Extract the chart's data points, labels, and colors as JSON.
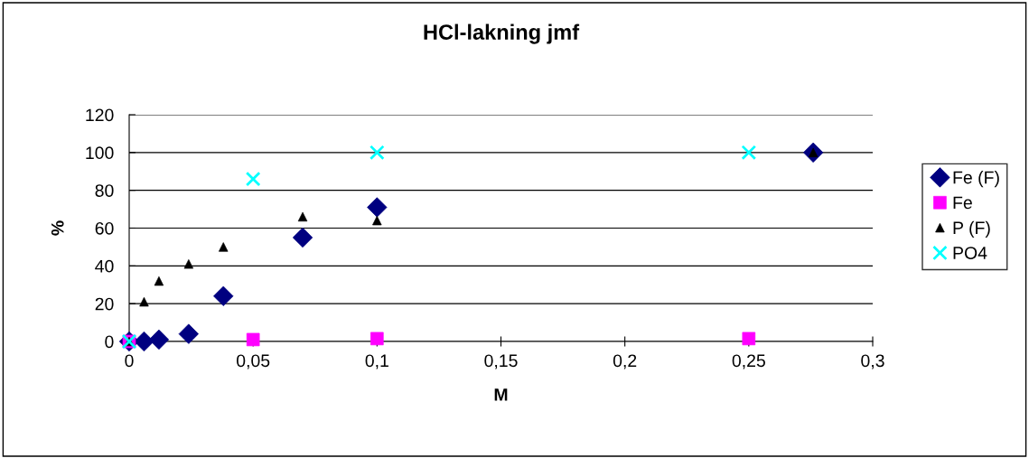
{
  "chart_data": {
    "type": "scatter",
    "title": "HCl-lakning jmf",
    "xlabel": "M",
    "ylabel": "%",
    "xlim": [
      0,
      0.3
    ],
    "xticks": [
      {
        "value": 0,
        "label": "0"
      },
      {
        "value": 0.05,
        "label": "0,05"
      },
      {
        "value": 0.1,
        "label": "0,1"
      },
      {
        "value": 0.15,
        "label": "0,15"
      },
      {
        "value": 0.2,
        "label": "0,2"
      },
      {
        "value": 0.25,
        "label": "0,25"
      },
      {
        "value": 0.3,
        "label": "0,3"
      }
    ],
    "ylim": [
      0,
      120
    ],
    "yticks": [
      0,
      20,
      40,
      60,
      80,
      100,
      120
    ],
    "grid": "y",
    "legend": "right",
    "series": [
      {
        "name": "Fe (F)",
        "color": "#000080",
        "marker": "diamond",
        "x": [
          0,
          0.006,
          0.012,
          0.024,
          0.038,
          0.07,
          0.1,
          0.276
        ],
        "values": [
          0,
          0,
          1,
          4,
          24,
          55,
          71,
          100
        ]
      },
      {
        "name": "Fe",
        "color": "#ff00ff",
        "marker": "square",
        "x": [
          0,
          0.05,
          0.1,
          0.25
        ],
        "values": [
          0,
          1,
          1.5,
          1.5
        ]
      },
      {
        "name": "P (F)",
        "color": "#000000",
        "marker": "triangle",
        "x": [
          0,
          0.006,
          0.012,
          0.024,
          0.038,
          0.07,
          0.1,
          0.276
        ],
        "values": [
          0,
          21,
          32,
          41,
          50,
          66,
          64,
          100
        ]
      },
      {
        "name": "PO4",
        "color": "#00ffff",
        "marker": "cross",
        "x": [
          0,
          0.05,
          0.1,
          0.25
        ],
        "values": [
          0,
          86,
          100,
          100
        ]
      }
    ]
  }
}
